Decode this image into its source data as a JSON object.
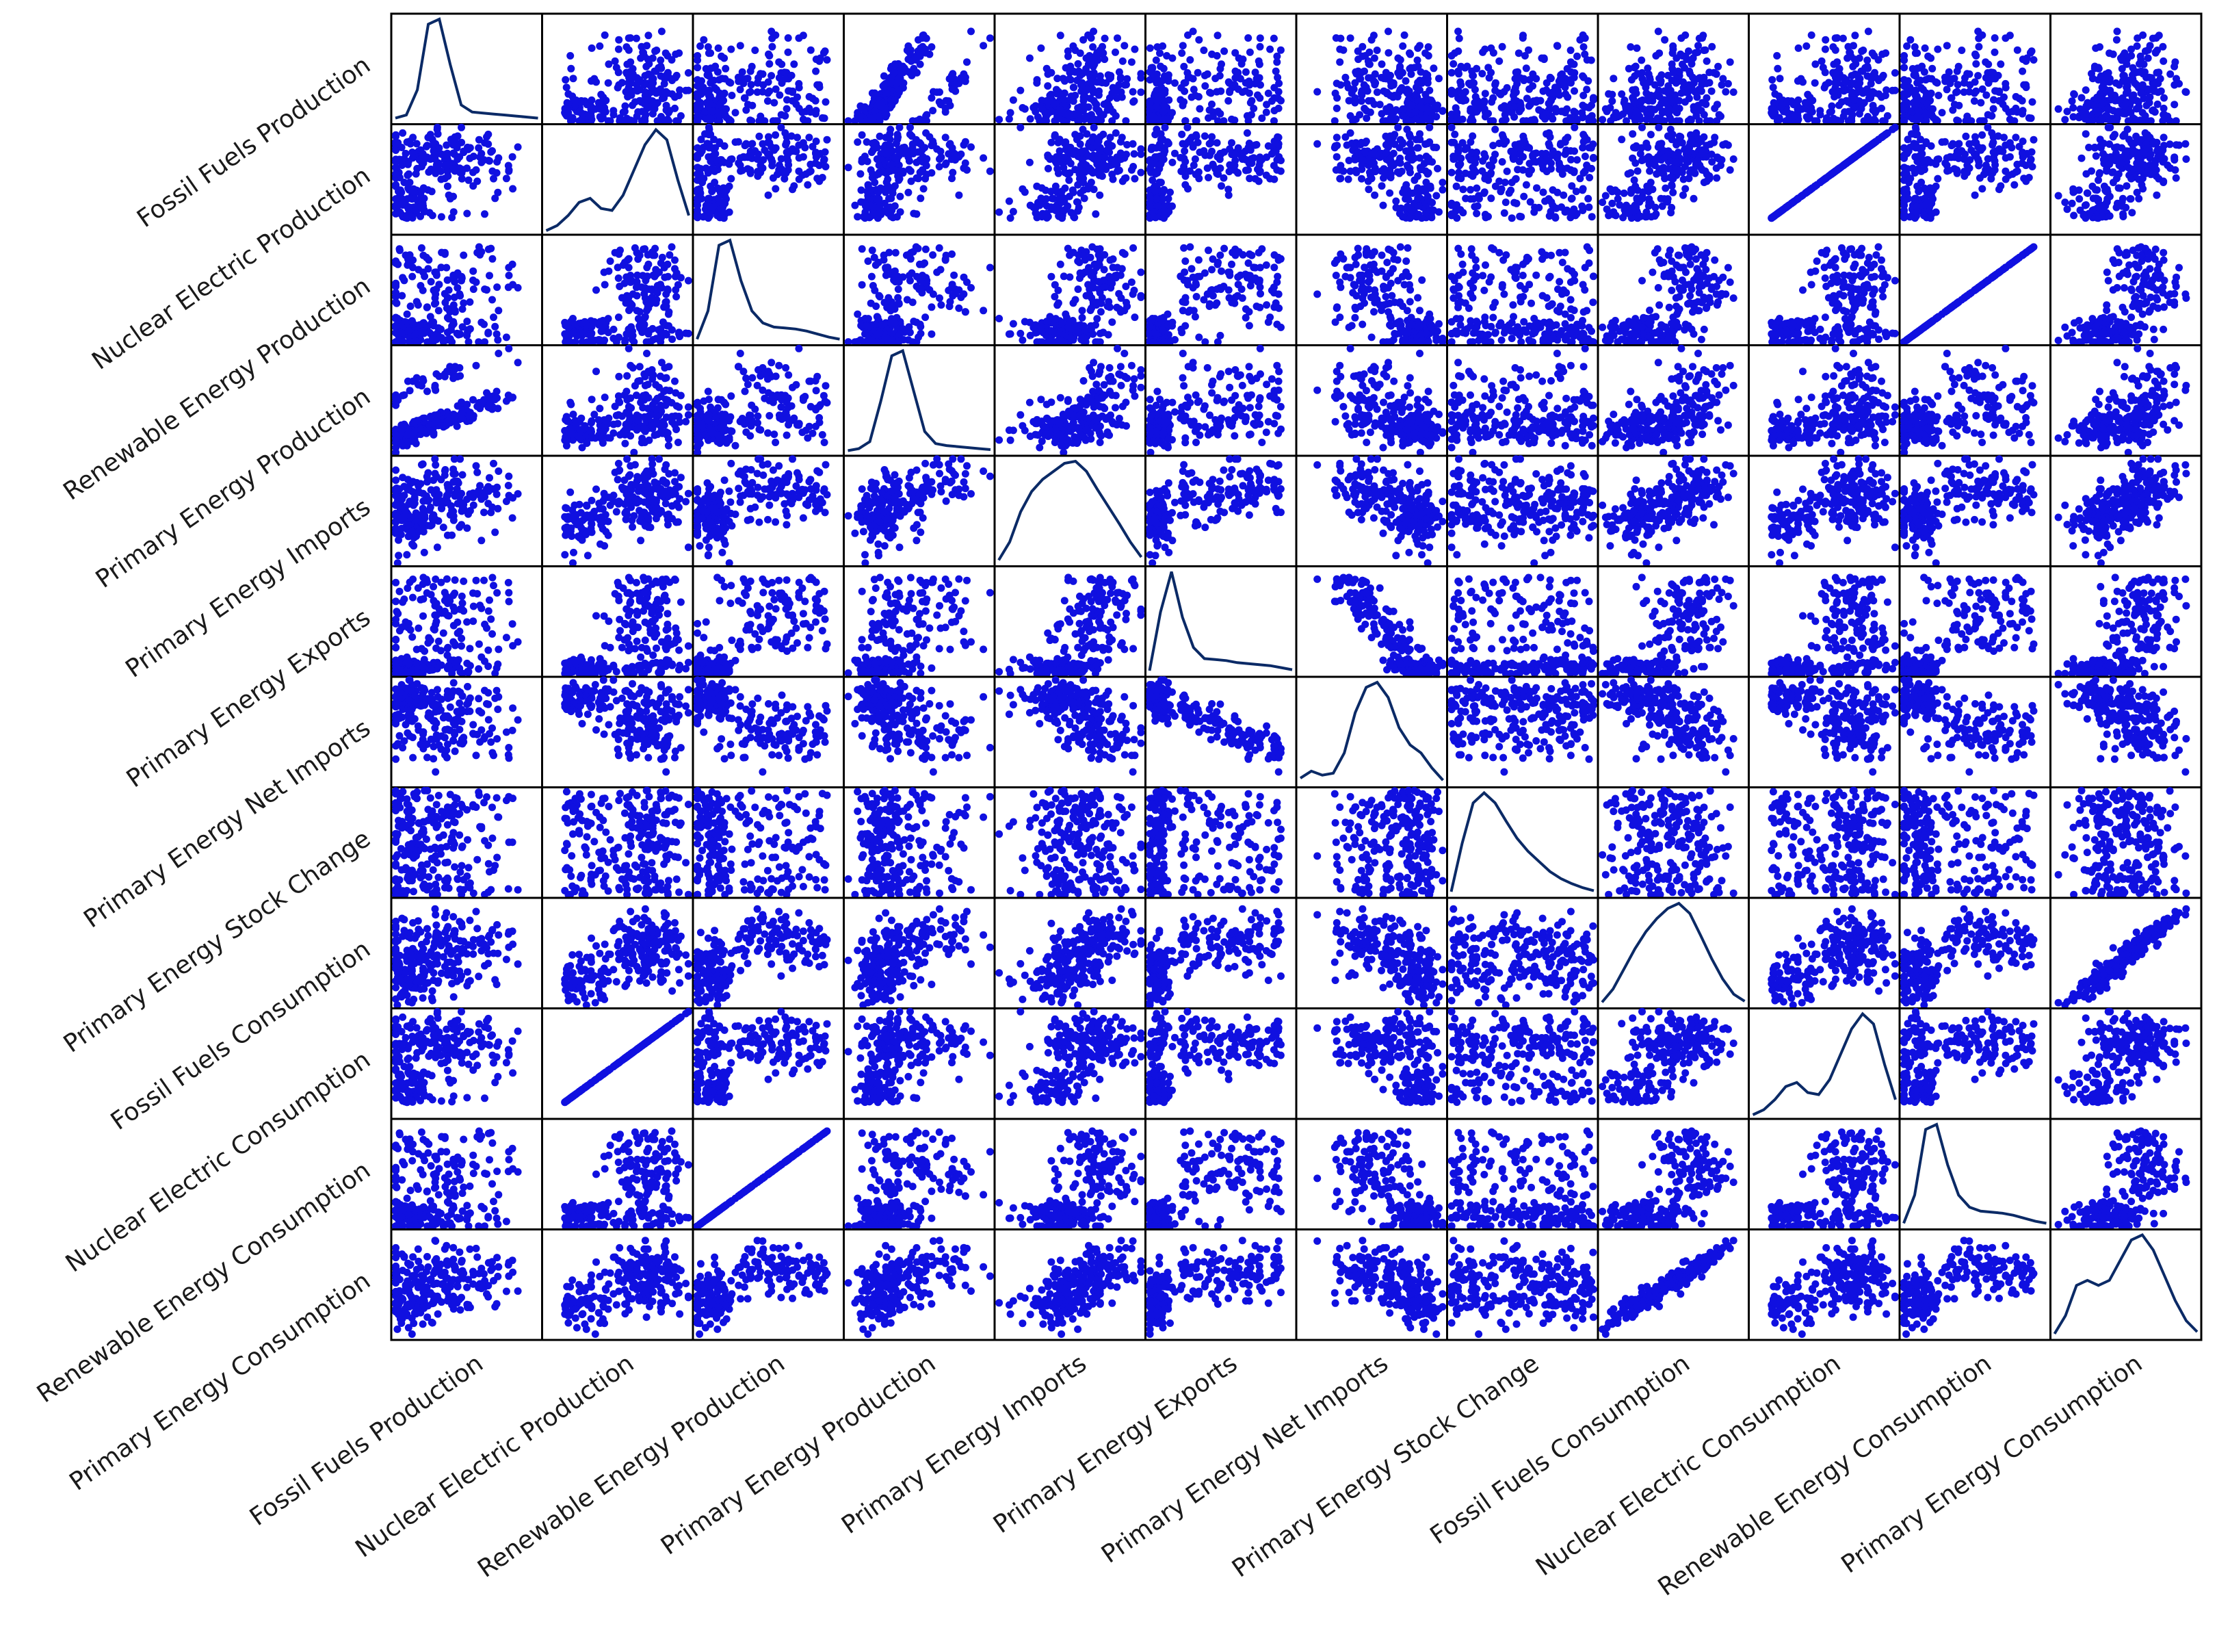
{
  "chart_data": {
    "type": "scatter-matrix",
    "title": "",
    "diagonal": "kde",
    "point_color": "#1010e0",
    "kde_color": "#0b2a66",
    "variables": [
      "Fossil Fuels Production",
      "Nuclear Electric Production",
      "Renewable Energy Production",
      "Primary Energy Production",
      "Primary Energy Imports",
      "Primary Energy Exports",
      "Primary Energy Net Imports",
      "Primary Energy Stock Change",
      "Fossil Fuels Consumption",
      "Nuclear Electric Consumption",
      "Renewable Energy Consumption",
      "Primary Energy Consumption"
    ],
    "row_labels": [
      "Fossil Fuels Production",
      "Nuclear Electric Production",
      "Renewable Energy Production",
      "Primary Energy Production",
      "Primary Energy Imports",
      "Primary Energy Exports",
      "Primary Energy Net Imports",
      "Primary Energy Stock Change",
      "Fossil Fuels Consumption",
      "Nuclear Electric Consumption",
      "Renewable Energy Consumption",
      "Primary Energy Consumption"
    ],
    "column_labels": [
      "Fossil Fuels Production",
      "Nuclear Electric Production",
      "Renewable Energy Production",
      "Primary Energy Production",
      "Primary Energy Imports",
      "Primary Energy Exports",
      "Primary Energy Net Imports",
      "Primary Energy Stock Change",
      "Fossil Fuels Consumption",
      "Nuclear Electric Consumption",
      "Renewable Energy Consumption",
      "Primary Energy Consumption"
    ],
    "kde_curves": [
      {
        "variable": "Fossil Fuels Production",
        "density": [
          0.02,
          0.05,
          0.3,
          0.95,
          1.0,
          0.55,
          0.15,
          0.08,
          0.07,
          0.06,
          0.05,
          0.04,
          0.03,
          0.02
        ]
      },
      {
        "variable": "Nuclear Electric Production",
        "density": [
          0.0,
          0.05,
          0.15,
          0.28,
          0.32,
          0.22,
          0.2,
          0.35,
          0.6,
          0.85,
          1.0,
          0.9,
          0.5,
          0.15
        ]
      },
      {
        "variable": "Renewable Energy Production",
        "density": [
          0.02,
          0.3,
          0.95,
          1.0,
          0.6,
          0.3,
          0.18,
          0.14,
          0.13,
          0.12,
          0.1,
          0.07,
          0.04,
          0.02
        ]
      },
      {
        "variable": "Primary Energy Production",
        "density": [
          0.01,
          0.03,
          0.1,
          0.5,
          0.95,
          1.0,
          0.6,
          0.2,
          0.08,
          0.06,
          0.05,
          0.04,
          0.03,
          0.02
        ]
      },
      {
        "variable": "Primary Energy Imports",
        "density": [
          0.02,
          0.2,
          0.5,
          0.7,
          0.82,
          0.9,
          0.98,
          1.0,
          0.9,
          0.72,
          0.55,
          0.38,
          0.2,
          0.05
        ]
      },
      {
        "variable": "Primary Energy Exports",
        "density": [
          0.02,
          0.6,
          1.0,
          0.55,
          0.25,
          0.14,
          0.13,
          0.12,
          0.1,
          0.09,
          0.08,
          0.07,
          0.05,
          0.03
        ]
      },
      {
        "variable": "Primary Energy Net Imports",
        "density": [
          0.05,
          0.12,
          0.08,
          0.1,
          0.3,
          0.7,
          0.95,
          1.0,
          0.85,
          0.55,
          0.38,
          0.3,
          0.15,
          0.03
        ]
      },
      {
        "variable": "Primary Energy Stock Change",
        "density": [
          0.02,
          0.5,
          0.9,
          1.0,
          0.9,
          0.72,
          0.55,
          0.42,
          0.32,
          0.22,
          0.15,
          0.1,
          0.06,
          0.03
        ]
      },
      {
        "variable": "Fossil Fuels Consumption",
        "density": [
          0.02,
          0.15,
          0.35,
          0.55,
          0.72,
          0.85,
          0.95,
          1.0,
          0.9,
          0.68,
          0.45,
          0.25,
          0.1,
          0.03
        ]
      },
      {
        "variable": "Nuclear Electric Consumption",
        "density": [
          0.0,
          0.05,
          0.15,
          0.28,
          0.32,
          0.22,
          0.2,
          0.35,
          0.6,
          0.85,
          1.0,
          0.9,
          0.5,
          0.15
        ]
      },
      {
        "variable": "Renewable Energy Consumption",
        "density": [
          0.02,
          0.3,
          0.95,
          1.0,
          0.6,
          0.3,
          0.18,
          0.14,
          0.13,
          0.12,
          0.1,
          0.07,
          0.04,
          0.02
        ]
      },
      {
        "variable": "Primary Energy Consumption",
        "density": [
          0.02,
          0.2,
          0.5,
          0.55,
          0.5,
          0.55,
          0.75,
          0.95,
          1.0,
          0.85,
          0.6,
          0.35,
          0.15,
          0.04
        ]
      }
    ]
  }
}
